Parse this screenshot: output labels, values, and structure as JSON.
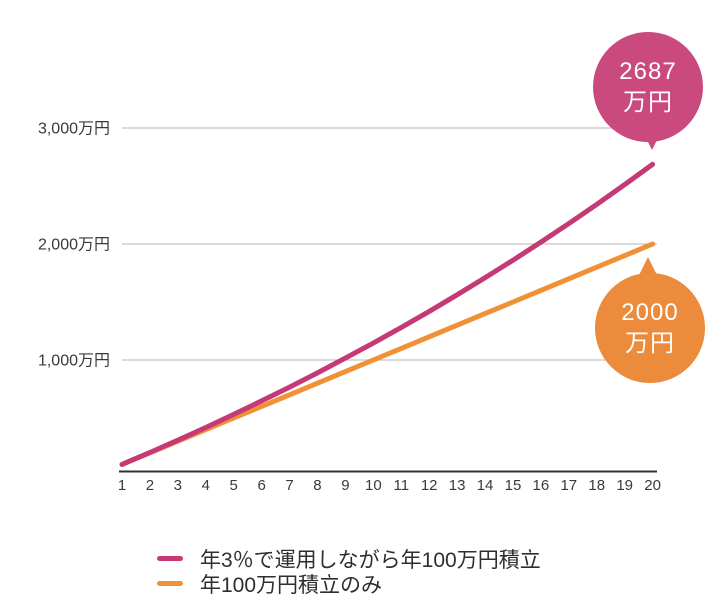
{
  "chart_data": {
    "type": "line",
    "x": [
      1,
      2,
      3,
      4,
      5,
      6,
      7,
      8,
      9,
      10,
      11,
      12,
      13,
      14,
      15,
      16,
      17,
      18,
      19,
      20
    ],
    "ylim": [
      0,
      3200
    ],
    "yticks": [
      {
        "value": 1000,
        "label": "1,000万円"
      },
      {
        "value": 2000,
        "label": "2,000万円"
      },
      {
        "value": 3000,
        "label": "3,000万円"
      }
    ],
    "grid": "horizontal-light",
    "legend_position": "bottom-center",
    "series": [
      {
        "name": "年100万円積立のみ",
        "color": "#f19136",
        "values": [
          100,
          200,
          300,
          400,
          500,
          600,
          700,
          800,
          900,
          1000,
          1100,
          1200,
          1300,
          1400,
          1500,
          1600,
          1700,
          1800,
          1900,
          2000
        ]
      },
      {
        "name": "年3％で運用しながら年100万円積立",
        "color": "#c53a76",
        "values": [
          100,
          203,
          309,
          418,
          531,
          647,
          766,
          889,
          1016,
          1146,
          1281,
          1419,
          1562,
          1709,
          1860,
          2016,
          2176,
          2341,
          2512,
          2687
        ]
      }
    ]
  },
  "annotations": {
    "pink_bubble": {
      "value": "2687",
      "unit": "万円",
      "color": "#ca4a7d",
      "text_color": "#ffffff"
    },
    "orange_bubble": {
      "value": "2000",
      "unit": "万円",
      "color": "#ec8b3b",
      "text_color": "#ffffff"
    }
  },
  "legend": {
    "items": [
      {
        "label": "年3％で運用しながら年100万円積立",
        "color": "#c53a76"
      },
      {
        "label": "年100万円積立のみ",
        "color": "#f19136"
      }
    ]
  },
  "style_colors": {
    "gridline": "#c5c5c5",
    "axis_line": "#303030",
    "tick_text": "#3a3a3a"
  }
}
